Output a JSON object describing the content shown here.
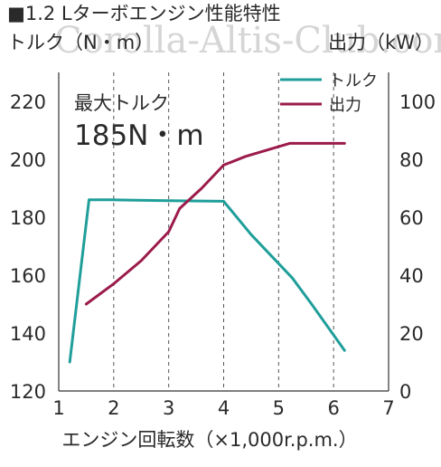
{
  "watermark": "Corolla-Altis-Club.com",
  "chart_data": {
    "type": "line",
    "title": "■1.2 Lターボエンジン性能特性",
    "xlabel": "エンジン回転数（×1,000r.p.m.）",
    "ylabel_left": "トルク（N・m）",
    "ylabel_right": "出力（kW）",
    "xlim": [
      1,
      7
    ],
    "ylim_left": [
      120,
      230
    ],
    "ylim_right": [
      0,
      110
    ],
    "x_ticks": [
      "1",
      "2",
      "3",
      "4",
      "5",
      "6",
      "7"
    ],
    "y_left_ticks": [
      "120",
      "140",
      "160",
      "180",
      "200",
      "220"
    ],
    "y_right_ticks": [
      "0",
      "20",
      "40",
      "60",
      "80",
      "100"
    ],
    "grid": "vertical dashed at 2, 3, 4, 5, 6",
    "legend_position": "top-right",
    "annotation": {
      "label": "最大トルク",
      "value": "185N・m"
    },
    "colors": {
      "torque": "#1f9e9a",
      "power": "#9b1b4b"
    },
    "series": [
      {
        "name": "トルク",
        "axis": "left",
        "color": "#1f9e9a",
        "points": [
          [
            1.2,
            130
          ],
          [
            1.55,
            186
          ],
          [
            2.0,
            186
          ],
          [
            3.0,
            185.7
          ],
          [
            4.0,
            185.5
          ],
          [
            4.5,
            174
          ],
          [
            5.0,
            164
          ],
          [
            5.25,
            159
          ],
          [
            5.6,
            150
          ],
          [
            6.2,
            134
          ]
        ]
      },
      {
        "name": "出力",
        "axis": "right",
        "color": "#9b1b4b",
        "points": [
          [
            1.5,
            30
          ],
          [
            2.0,
            37
          ],
          [
            2.5,
            45
          ],
          [
            3.0,
            55
          ],
          [
            3.2,
            63
          ],
          [
            3.6,
            70
          ],
          [
            4.0,
            78
          ],
          [
            4.4,
            81
          ],
          [
            5.2,
            85.5
          ],
          [
            6.2,
            85.5
          ]
        ]
      }
    ]
  }
}
